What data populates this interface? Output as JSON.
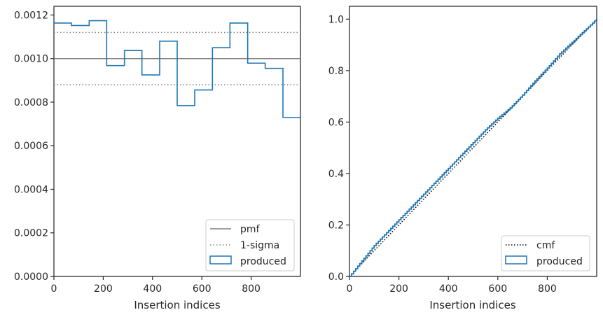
{
  "chart_data": [
    {
      "type": "line",
      "xlabel": "Insertion indices",
      "ylabel": "",
      "xlim": [
        0,
        1000
      ],
      "ylim": [
        0,
        0.00124
      ],
      "xticks": [
        "0",
        "200",
        "400",
        "600",
        "800"
      ],
      "yticks": [
        "0.0000",
        "0.0002",
        "0.0004",
        "0.0006",
        "0.0008",
        "0.0010",
        "0.0012"
      ],
      "grid": false,
      "legend_position": "lower-right",
      "colors": {
        "pmf": "#808080",
        "sigma": "#808080",
        "produced": "#1f77b4"
      },
      "series": [
        {
          "name": "pmf",
          "style": "solid",
          "x": [
            0,
            1000
          ],
          "y": [
            0.001,
            0.001
          ]
        },
        {
          "name": "1-sigma",
          "style": "dotted",
          "y_levels": [
            0.00112,
            0.00088
          ]
        },
        {
          "name": "produced",
          "style": "step-histogram",
          "bin_edges": [
            0,
            71,
            143,
            214,
            286,
            357,
            429,
            500,
            571,
            643,
            714,
            786,
            857,
            929,
            1000
          ],
          "values": [
            0.001163,
            0.001152,
            0.001174,
            0.000968,
            0.001037,
            0.000925,
            0.00108,
            0.000784,
            0.000856,
            0.00105,
            0.001163,
            0.000979,
            0.000955,
            0.00073
          ]
        }
      ],
      "legend": [
        "pmf",
        "1-sigma",
        "produced"
      ]
    },
    {
      "type": "line",
      "xlabel": "Insertion indices",
      "ylabel": "",
      "xlim": [
        0,
        1000
      ],
      "ylim": [
        0,
        1.05
      ],
      "xticks": [
        "0",
        "200",
        "400",
        "600",
        "800"
      ],
      "yticks": [
        "0.0",
        "0.2",
        "0.4",
        "0.6",
        "0.8",
        "1.0"
      ],
      "grid": false,
      "legend_position": "lower-right",
      "colors": {
        "cmf": "#000000",
        "produced": "#1f77b4"
      },
      "series": [
        {
          "name": "cmf",
          "style": "dotted",
          "x": [
            0,
            1000
          ],
          "y": [
            0,
            1
          ]
        },
        {
          "name": "produced",
          "style": "step",
          "x": [
            0,
            50,
            100,
            150,
            200,
            250,
            300,
            350,
            400,
            450,
            500,
            550,
            600,
            650,
            700,
            750,
            800,
            850,
            900,
            950,
            1000
          ],
          "y": [
            0,
            0.06,
            0.12,
            0.17,
            0.22,
            0.27,
            0.32,
            0.37,
            0.42,
            0.47,
            0.52,
            0.57,
            0.615,
            0.655,
            0.705,
            0.76,
            0.81,
            0.865,
            0.91,
            0.955,
            1.0
          ]
        }
      ],
      "legend": [
        "cmf",
        "produced"
      ]
    }
  ]
}
